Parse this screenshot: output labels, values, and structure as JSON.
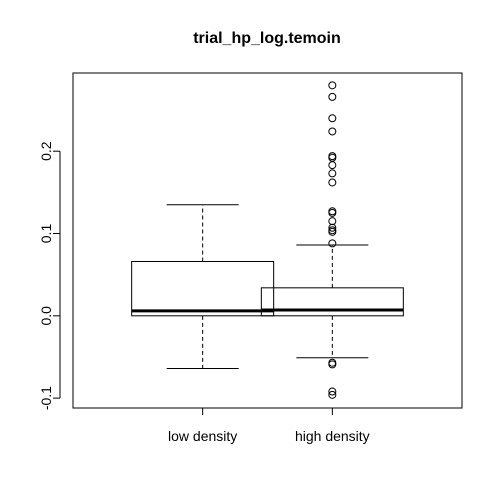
{
  "chart_data": {
    "type": "boxplot",
    "title": "trial_hp_log.temoin",
    "xlabel": "",
    "ylabel": "",
    "ylim": [
      -0.112,
      0.295
    ],
    "y_ticks": [
      -0.1,
      0.0,
      0.1,
      0.2
    ],
    "y_tick_labels": [
      "-0.1",
      "0.0",
      "0.1",
      "0.2"
    ],
    "categories": [
      "low density",
      "high density"
    ],
    "boxes": [
      {
        "name": "low density",
        "whisker_low": -0.064,
        "q1": 0.0,
        "median": 0.006,
        "q3": 0.066,
        "whisker_high": 0.135,
        "outliers": []
      },
      {
        "name": "high density",
        "whisker_low": -0.051,
        "q1": 0.0,
        "median": 0.007,
        "q3": 0.034,
        "whisker_high": 0.086,
        "outliers": [
          0.28,
          0.266,
          0.24,
          0.224,
          0.194,
          0.192,
          0.183,
          0.173,
          0.162,
          0.127,
          0.125,
          0.115,
          0.107,
          0.104,
          0.102,
          0.088,
          -0.057,
          -0.059,
          -0.092,
          -0.096
        ]
      }
    ]
  }
}
